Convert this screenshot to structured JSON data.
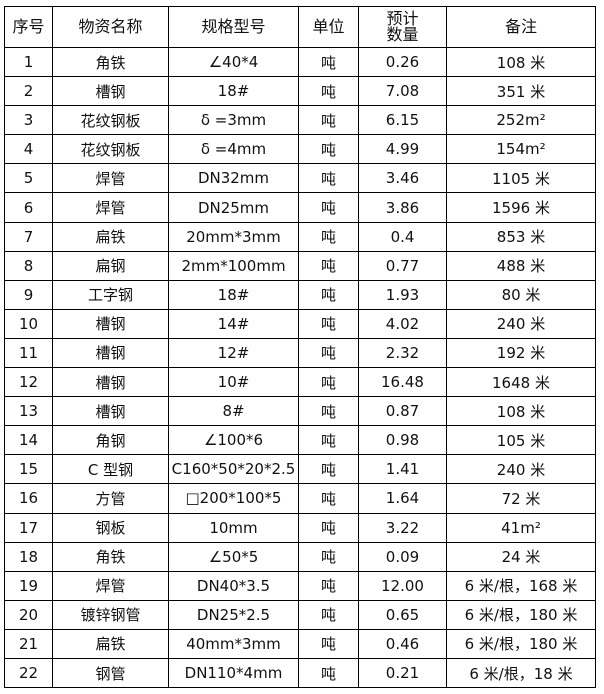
{
  "headers": [
    "序号",
    "物资名称",
    "规格型号",
    "单位",
    "预计\n数量",
    "备注"
  ],
  "rows": [
    [
      "1",
      "角铁",
      "∠40*4",
      "吨",
      "0.26",
      "108 米"
    ],
    [
      "2",
      "槽钢",
      "18#",
      "吨",
      "7.08",
      "351 米"
    ],
    [
      "3",
      "花纹钢板",
      "δ =3mm",
      "吨",
      "6.15",
      "252m²"
    ],
    [
      "4",
      "花纹钢板",
      "δ =4mm",
      "吨",
      "4.99",
      "154m²"
    ],
    [
      "5",
      "焊管",
      "DN32mm",
      "吨",
      "3.46",
      "1105 米"
    ],
    [
      "6",
      "焊管",
      "DN25mm",
      "吨",
      "3.86",
      "1596 米"
    ],
    [
      "7",
      "扁铁",
      "20mm*3mm",
      "吨",
      "0.4",
      "853 米"
    ],
    [
      "8",
      "扁钢",
      "2mm*100mm",
      "吨",
      "0.77",
      "488 米"
    ],
    [
      "9",
      "工字钢",
      "18#",
      "吨",
      "1.93",
      "80 米"
    ],
    [
      "10",
      "槽钢",
      "14#",
      "吨",
      "4.02",
      "240 米"
    ],
    [
      "11",
      "槽钢",
      "12#",
      "吨",
      "2.32",
      "192 米"
    ],
    [
      "12",
      "槽钢",
      "10#",
      "吨",
      "16.48",
      "1648 米"
    ],
    [
      "13",
      "槽钢",
      "8#",
      "吨",
      "0.87",
      "108 米"
    ],
    [
      "14",
      "角钢",
      "∠100*6",
      "吨",
      "0.98",
      "105 米"
    ],
    [
      "15",
      "C 型钢",
      "C160*50*20*2.5",
      "吨",
      "1.41",
      "240 米"
    ],
    [
      "16",
      "方管",
      "□200*100*5",
      "吨",
      "1.64",
      "72 米"
    ],
    [
      "17",
      "钢板",
      "10mm",
      "吨",
      "3.22",
      "41m²"
    ],
    [
      "18",
      "角铁",
      "∠50*5",
      "吨",
      "0.09",
      "24 米"
    ],
    [
      "19",
      "焊管",
      "DN40*3.5",
      "吨",
      "12.00",
      "6 米/根，168 米"
    ],
    [
      "20",
      "镀锌钢管",
      "DN25*2.5",
      "吨",
      "0.65",
      "6 米/根，180 米"
    ],
    [
      "21",
      "扁铁",
      "40mm*3mm",
      "吨",
      "0.46",
      "6 米/根，180 米"
    ],
    [
      "22",
      "钢管",
      "DN110*4mm",
      "吨",
      "0.21",
      "6 米/根，18 米"
    ]
  ]
}
